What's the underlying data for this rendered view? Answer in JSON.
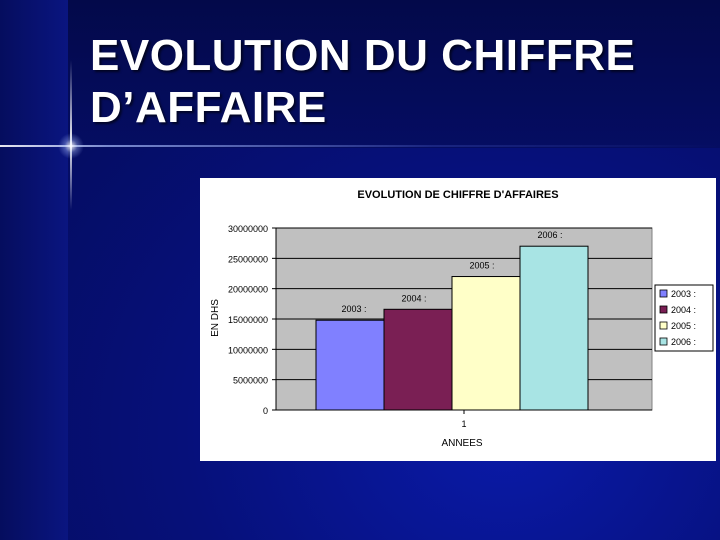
{
  "slide": {
    "title_line1": "EVOLUTION DU CHIFFRE",
    "title_line2": "D’AFFAIRE"
  },
  "chart_data": {
    "type": "bar",
    "title": "EVOLUTION DE CHIFFRE D'AFFAIRES",
    "xlabel": "ANNEES",
    "ylabel": "EN DHS",
    "categories": [
      "1"
    ],
    "series": [
      {
        "name": "2003 :",
        "values": [
          14800000
        ],
        "color": "#8080ff",
        "label": "2003 :"
      },
      {
        "name": "2004 :",
        "values": [
          16600000
        ],
        "color": "#7a1f54",
        "label": "2004 :"
      },
      {
        "name": "2005 :",
        "values": [
          22000000
        ],
        "color": "#ffffc8",
        "label": "2005 :"
      },
      {
        "name": "2006 :",
        "values": [
          27000000
        ],
        "color": "#a8e4e4",
        "label": "2006 :"
      }
    ],
    "ylim": [
      0,
      30000000
    ],
    "yticks": [
      "30000000",
      "25000000",
      "20000000",
      "15000000",
      "10000000",
      "5000000",
      "0"
    ],
    "grid": true,
    "legend_position": "right",
    "plot_background": "#c0c0c0"
  }
}
